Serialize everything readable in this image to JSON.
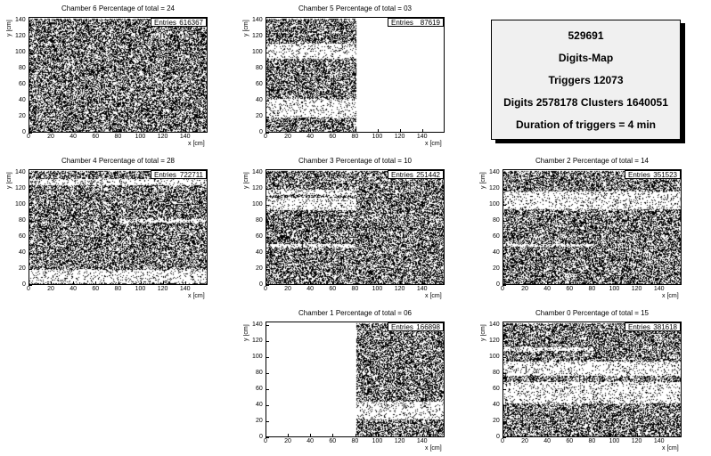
{
  "info": {
    "run": "529691",
    "name": "Digits-Map",
    "triggers": "Triggers 12073",
    "digits": "Digits 2578178 Clusters 1640051",
    "duration": "Duration of triggers = 4 min"
  },
  "chart_data": [
    {
      "type": "heatmap",
      "title": "Chamber 6 Percentage of total = 24",
      "entries_label": "Entries",
      "entries": "616367",
      "xlabel": "x [cm]",
      "ylabel": "y [cm]",
      "xlim": [
        0,
        160
      ],
      "ylim": [
        0,
        140
      ],
      "xticks": [
        0,
        20,
        40,
        60,
        80,
        100,
        120,
        140
      ],
      "yticks": [
        0,
        20,
        40,
        60,
        80,
        100,
        120,
        140
      ],
      "active_regions": [
        [
          0,
          160,
          0,
          144
        ]
      ],
      "dense_bands": []
    },
    {
      "type": "heatmap",
      "title": "Chamber 5 Percentage of total = 03",
      "entries_label": "Entries",
      "entries": "87619",
      "xlabel": "x [cm]",
      "ylabel": "y [cm]",
      "xlim": [
        0,
        160
      ],
      "ylim": [
        0,
        140
      ],
      "xticks": [
        0,
        20,
        40,
        60,
        80,
        100,
        120,
        140
      ],
      "yticks": [
        0,
        20,
        40,
        60,
        80,
        100,
        120,
        140
      ],
      "active_regions": [
        [
          0,
          80,
          0,
          144
        ]
      ],
      "dense_bands": [
        [
          0,
          80,
          94,
          112
        ],
        [
          0,
          80,
          20,
          44
        ]
      ]
    },
    {
      "type": "heatmap",
      "title": "Chamber 4 Percentage of total = 28",
      "entries_label": "Entries",
      "entries": "722711",
      "xlabel": "x [cm]",
      "ylabel": "y [cm]",
      "xlim": [
        0,
        160
      ],
      "ylim": [
        0,
        140
      ],
      "xticks": [
        0,
        20,
        40,
        60,
        80,
        100,
        120,
        140
      ],
      "yticks": [
        0,
        20,
        40,
        60,
        80,
        100,
        120,
        140
      ],
      "active_regions": [
        [
          0,
          160,
          0,
          144
        ]
      ],
      "dense_bands": [
        [
          0,
          160,
          126,
          134
        ],
        [
          80,
          160,
          79,
          84
        ],
        [
          0,
          160,
          4,
          20
        ]
      ]
    },
    {
      "type": "heatmap",
      "title": "Chamber 3 Percentage of total = 10",
      "entries_label": "Entries",
      "entries": "251442",
      "xlabel": "x [cm]",
      "ylabel": "y [cm]",
      "xlim": [
        0,
        160
      ],
      "ylim": [
        0,
        140
      ],
      "xticks": [
        0,
        20,
        40,
        60,
        80,
        100,
        120,
        140
      ],
      "yticks": [
        0,
        20,
        40,
        60,
        80,
        100,
        120,
        140
      ],
      "active_regions": [
        [
          0,
          160,
          0,
          144
        ]
      ],
      "dense_bands": [
        [
          0,
          80,
          114,
          120
        ],
        [
          0,
          80,
          95,
          110
        ],
        [
          0,
          80,
          48,
          53
        ]
      ]
    },
    {
      "type": "heatmap",
      "title": "Chamber 2 Percentage of total = 14",
      "entries_label": "Entries",
      "entries": "351523",
      "xlabel": "x [cm]",
      "ylabel": "y [cm]",
      "xlim": [
        0,
        160
      ],
      "ylim": [
        0,
        140
      ],
      "xticks": [
        0,
        20,
        40,
        60,
        80,
        100,
        120,
        140
      ],
      "yticks": [
        0,
        20,
        40,
        60,
        80,
        100,
        120,
        140
      ],
      "active_regions": [
        [
          0,
          160,
          0,
          144
        ]
      ],
      "dense_bands": [
        [
          0,
          160,
          96,
          118
        ],
        [
          0,
          80,
          49,
          53
        ]
      ]
    },
    {
      "type": "heatmap",
      "title": "Chamber 1 Percentage of total = 06",
      "entries_label": "Entries",
      "entries": "166898",
      "xlabel": "x [cm]",
      "ylabel": "y [cm]",
      "xlim": [
        0,
        160
      ],
      "ylim": [
        0,
        140
      ],
      "xticks": [
        0,
        20,
        40,
        60,
        80,
        100,
        120,
        140
      ],
      "yticks": [
        0,
        20,
        40,
        60,
        80,
        100,
        120,
        140
      ],
      "active_regions": [
        [
          80,
          160,
          0,
          144
        ]
      ],
      "dense_bands": [
        [
          80,
          160,
          24,
          46
        ]
      ]
    },
    {
      "type": "heatmap",
      "title": "Chamber 0 Percentage of total = 15",
      "entries_label": "Entries",
      "entries": "381618",
      "xlabel": "x [cm]",
      "ylabel": "y [cm]",
      "xlim": [
        0,
        160
      ],
      "ylim": [
        0,
        140
      ],
      "xticks": [
        0,
        20,
        40,
        60,
        80,
        100,
        120,
        140
      ],
      "yticks": [
        0,
        20,
        40,
        60,
        80,
        100,
        120,
        140
      ],
      "active_regions": [
        [
          0,
          160,
          0,
          144
        ]
      ],
      "dense_bands": [
        [
          0,
          80,
          109,
          114
        ],
        [
          0,
          160,
          44,
          70
        ],
        [
          0,
          160,
          78,
          96
        ]
      ]
    }
  ]
}
